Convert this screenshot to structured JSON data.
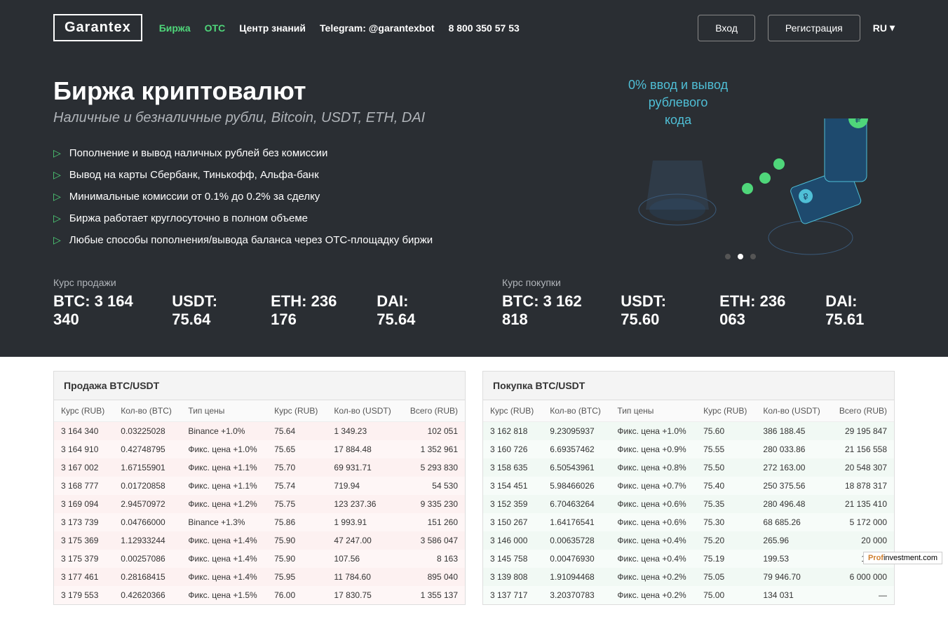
{
  "header": {
    "logo": "Garantex",
    "nav": [
      {
        "label": "Биржа",
        "active": true
      },
      {
        "label": "OTC",
        "active": true
      },
      {
        "label": "Центр знаний",
        "active": false
      },
      {
        "label": "Telegram: @garantexbot",
        "active": false
      },
      {
        "label": "8 800 350 57 53",
        "active": false
      }
    ],
    "login": "Вход",
    "register": "Регистрация",
    "lang": "RU"
  },
  "hero": {
    "title": "Биржа криптовалют",
    "subtitle": "Наличные и безналичные рубли, Bitcoin, USDT, ETH, DAI",
    "features": [
      "Пополнение и вывод наличных рублей без комиссии",
      "Вывод на карты Сбербанк, Тинькофф, Альфа-банк",
      "Минимальные комиссии от 0.1% до 0.2% за сделку",
      "Биржа работает круглосуточно в полном объеме",
      "Любые способы пополнения/вывода баланса через OTC-площадку биржи"
    ],
    "promo_line1": "0% ввод и вывод",
    "promo_line2": "рублевого",
    "promo_line3": "кода"
  },
  "rates": {
    "sell_label": "Курс продажи",
    "buy_label": "Курс покупки",
    "sell": [
      {
        "pair": "BTC:",
        "val": "3 164 340"
      },
      {
        "pair": "USDT:",
        "val": "75.64"
      },
      {
        "pair": "ETH:",
        "val": "236 176"
      },
      {
        "pair": "DAI:",
        "val": "75.64"
      }
    ],
    "buy": [
      {
        "pair": "BTC:",
        "val": "3 162 818"
      },
      {
        "pair": "USDT:",
        "val": "75.60"
      },
      {
        "pair": "ETH:",
        "val": "236 063"
      },
      {
        "pair": "DAI:",
        "val": "75.61"
      }
    ]
  },
  "tables": {
    "sell_title": "Продажа BTC/USDT",
    "buy_title": "Покупка BTC/USDT",
    "columns": [
      "Курс (RUB)",
      "Кол-во (BTC)",
      "Тип цены",
      "Курс (RUB)",
      "Кол-во (USDT)",
      "Всего (RUB)"
    ],
    "sell_rows": [
      [
        "3 164 340",
        "0.03225028",
        "Binance +1.0%",
        "75.64",
        "1 349.23",
        "102 051"
      ],
      [
        "3 164 910",
        "0.42748795",
        "Фикс. цена +1.0%",
        "75.65",
        "17 884.48",
        "1 352 961"
      ],
      [
        "3 167 002",
        "1.67155901",
        "Фикс. цена +1.1%",
        "75.70",
        "69 931.71",
        "5 293 830"
      ],
      [
        "3 168 777",
        "0.01720858",
        "Фикс. цена +1.1%",
        "75.74",
        "719.94",
        "54 530"
      ],
      [
        "3 169 094",
        "2.94570972",
        "Фикс. цена +1.2%",
        "75.75",
        "123 237.36",
        "9 335 230"
      ],
      [
        "3 173 739",
        "0.04766000",
        "Binance +1.3%",
        "75.86",
        "1 993.91",
        "151 260"
      ],
      [
        "3 175 369",
        "1.12933244",
        "Фикс. цена +1.4%",
        "75.90",
        "47 247.00",
        "3 586 047"
      ],
      [
        "3 175 379",
        "0.00257086",
        "Фикс. цена +1.4%",
        "75.90",
        "107.56",
        "8 163"
      ],
      [
        "3 177 461",
        "0.28168415",
        "Фикс. цена +1.4%",
        "75.95",
        "11 784.60",
        "895 040"
      ],
      [
        "3 179 553",
        "0.42620366",
        "Фикс. цена +1.5%",
        "76.00",
        "17 830.75",
        "1 355 137"
      ]
    ],
    "buy_rows": [
      [
        "3 162 818",
        "9.23095937",
        "Фикс. цена +1.0%",
        "75.60",
        "386 188.45",
        "29 195 847"
      ],
      [
        "3 160 726",
        "6.69357462",
        "Фикс. цена +0.9%",
        "75.55",
        "280 033.86",
        "21 156 558"
      ],
      [
        "3 158 635",
        "6.50543961",
        "Фикс. цена +0.8%",
        "75.50",
        "272 163.00",
        "20 548 307"
      ],
      [
        "3 154 451",
        "5.98466026",
        "Фикс. цена +0.7%",
        "75.40",
        "250 375.56",
        "18 878 317"
      ],
      [
        "3 152 359",
        "6.70463264",
        "Фикс. цена +0.6%",
        "75.35",
        "280 496.48",
        "21 135 410"
      ],
      [
        "3 150 267",
        "1.64176541",
        "Фикс. цена +0.6%",
        "75.30",
        "68 685.26",
        "5 172 000"
      ],
      [
        "3 146 000",
        "0.00635728",
        "Фикс. цена +0.4%",
        "75.20",
        "265.96",
        "20 000"
      ],
      [
        "3 145 758",
        "0.00476930",
        "Фикс. цена +0.4%",
        "75.19",
        "199.53",
        "15 003"
      ],
      [
        "3 139 808",
        "1.91094468",
        "Фикс. цена +0.2%",
        "75.05",
        "79 946.70",
        "6 000 000"
      ],
      [
        "3 137 717",
        "3.20370783",
        "Фикс. цена +0.2%",
        "75.00",
        "134 031",
        "—"
      ]
    ]
  },
  "watermark": {
    "pre": "Prof",
    "mid": "investment",
    "suf": ".com"
  },
  "colors": {
    "accent": "#4fd67a",
    "cyan": "#4fbfd6",
    "dark": "#2a2e33"
  }
}
